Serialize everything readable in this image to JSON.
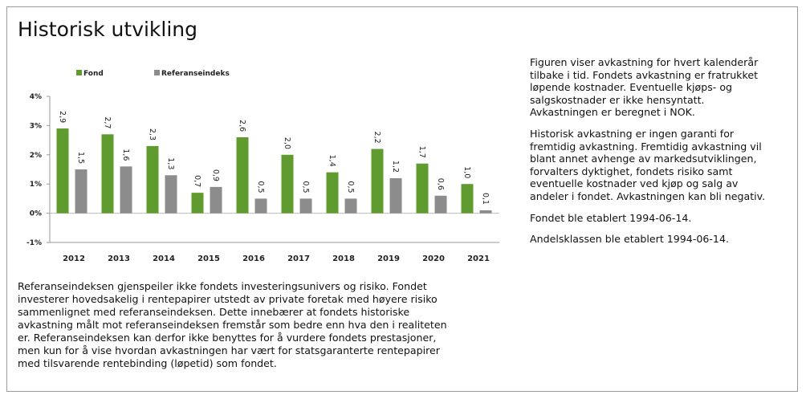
{
  "title": "Historisk utvikling",
  "chart_data": {
    "type": "bar",
    "categories": [
      "2012",
      "2013",
      "2014",
      "2015",
      "2016",
      "2017",
      "2018",
      "2019",
      "2020",
      "2021"
    ],
    "series": [
      {
        "name": "Fond",
        "color": "#5f9b2f",
        "values": [
          2.9,
          2.7,
          2.3,
          0.7,
          2.6,
          2.0,
          1.4,
          2.2,
          1.7,
          1.0
        ],
        "value_labels": [
          "2,9",
          "2,7",
          "2,3",
          "0,7",
          "2,6",
          "2,0",
          "1,4",
          "2,2",
          "1,7",
          "1,0"
        ]
      },
      {
        "name": "Referanseindeks",
        "color": "#8c8c8c",
        "values": [
          1.5,
          1.6,
          1.3,
          0.9,
          0.5,
          0.5,
          0.5,
          1.2,
          0.6,
          0.1
        ],
        "value_labels": [
          "1,5",
          "1,6",
          "1,3",
          "0,9",
          "0,5",
          "0,5",
          "0,5",
          "1,2",
          "0,6",
          "0,1"
        ]
      }
    ],
    "ylim": [
      -1,
      4
    ],
    "yticks": [
      {
        "value": 4,
        "label": "4%"
      },
      {
        "value": 3,
        "label": "3%"
      },
      {
        "value": 2,
        "label": "2%"
      },
      {
        "value": 1,
        "label": "1%"
      },
      {
        "value": 0,
        "label": "0%"
      },
      {
        "value": -1,
        "label": "-1%"
      }
    ],
    "grid": false,
    "legend": "top-left"
  },
  "right_text": [
    [
      "Figuren viser avkastning for hvert kalenderår",
      "tilbake i tid. Fondets avkastning er fratrukket",
      "løpende kostnader. Eventuelle kjøps- og",
      "salgskostnader er ikke hensyntatt.",
      "Avkastningen er beregnet i NOK."
    ],
    [
      "Historisk avkastning er ingen garanti for",
      "fremtidig avkastning. Fremtidig avkastning vil",
      "blant annet avhenge av markedsutviklingen,",
      "forvalters dyktighet, fondets risiko samt",
      "eventuelle kostnader ved kjøp og salg av",
      "andeler i fondet. Avkastningen kan bli negativ."
    ],
    [
      "Fondet ble etablert 1994-06-14."
    ],
    [
      "Andelsklassen ble etablert 1994-06-14."
    ]
  ],
  "bottom_text": [
    "Referanseindeksen gjenspeiler ikke fondets investeringsunivers og risiko. Fondet",
    "investerer hovedsakelig i rentepapirer utstedt av private foretak med høyere risiko",
    "sammenlignet med referanseindeksen. Dette innebærer at fondets historiske",
    "avkastning målt mot referanseindeksen fremstår som bedre enn hva den i realiteten",
    "er. Referanseindeksen kan derfor ikke benyttes for å vurdere fondets prestasjoner,",
    "men kun for å vise hvordan avkastningen har vært for statsgaranterte rentepapirer",
    "med tilsvarende rentebinding (løpetid) som fondet."
  ]
}
